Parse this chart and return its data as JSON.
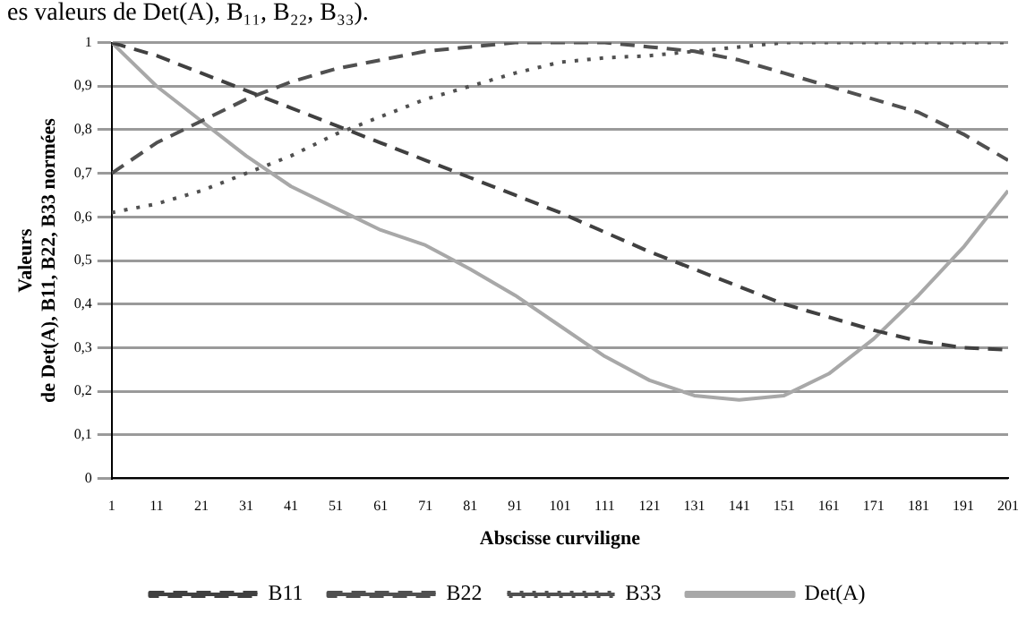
{
  "chart_data": {
    "type": "line",
    "annotations": [
      "es valeurs de Det(A), B₁₁, B₂₂, B₃₃)."
    ],
    "xlabel": "Abscisse curviligne",
    "ylabel": "Valeurs\nde Det(A), B11, B22, B33 normées",
    "x": [
      1,
      11,
      21,
      31,
      41,
      51,
      61,
      71,
      81,
      91,
      101,
      111,
      121,
      131,
      141,
      151,
      161,
      171,
      181,
      191,
      201
    ],
    "series": [
      {
        "name": "B11",
        "color": "#404040",
        "line_style": "dashed",
        "values": [
          1,
          0.97,
          0.93,
          0.89,
          0.85,
          0.81,
          0.77,
          0.73,
          0.69,
          0.65,
          0.61,
          0.565,
          0.52,
          0.48,
          0.44,
          0.4,
          0.37,
          0.34,
          0.315,
          0.3,
          0.295
        ]
      },
      {
        "name": "B22",
        "color": "#505050",
        "line_style": "dashed",
        "values": [
          0.7,
          0.77,
          0.82,
          0.87,
          0.91,
          0.94,
          0.96,
          0.98,
          0.99,
          1,
          1,
          1,
          0.99,
          0.98,
          0.96,
          0.93,
          0.9,
          0.87,
          0.84,
          0.79,
          0.73
        ]
      },
      {
        "name": "B33",
        "color": "#505050",
        "line_style": "dotted",
        "values": [
          0.61,
          0.63,
          0.66,
          0.7,
          0.74,
          0.79,
          0.83,
          0.87,
          0.9,
          0.93,
          0.955,
          0.965,
          0.97,
          0.98,
          0.99,
          1,
          1,
          1,
          1,
          1,
          1
        ]
      },
      {
        "name": "Det(A)",
        "color": "#a8a8a8",
        "line_style": "solid",
        "values": [
          1,
          0.9,
          0.82,
          0.74,
          0.67,
          0.62,
          0.57,
          0.535,
          0.48,
          0.42,
          0.35,
          0.28,
          0.225,
          0.19,
          0.18,
          0.19,
          0.24,
          0.32,
          0.42,
          0.53,
          0.66
        ]
      }
    ],
    "xlim": [
      1,
      201
    ],
    "xticks": [
      1,
      11,
      21,
      31,
      41,
      51,
      61,
      71,
      81,
      91,
      101,
      111,
      121,
      131,
      141,
      151,
      161,
      171,
      181,
      191,
      201
    ],
    "ylim": [
      0,
      1
    ],
    "yticks": [
      0,
      {
        "value": 0.1,
        "label": "0,1"
      },
      {
        "value": 0.2,
        "label": "0,2"
      },
      {
        "value": 0.3,
        "label": "0,3"
      },
      {
        "value": 0.4,
        "label": "0,4"
      },
      {
        "value": 0.5,
        "label": "0,5"
      },
      {
        "value": 0.6,
        "label": "0,6"
      },
      {
        "value": 0.7,
        "label": "0,7"
      },
      {
        "value": 0.8,
        "label": "0,8"
      },
      {
        "value": 0.9,
        "label": "0,9"
      },
      1
    ],
    "grid": "y",
    "legend": "bottom",
    "marker": "none"
  }
}
